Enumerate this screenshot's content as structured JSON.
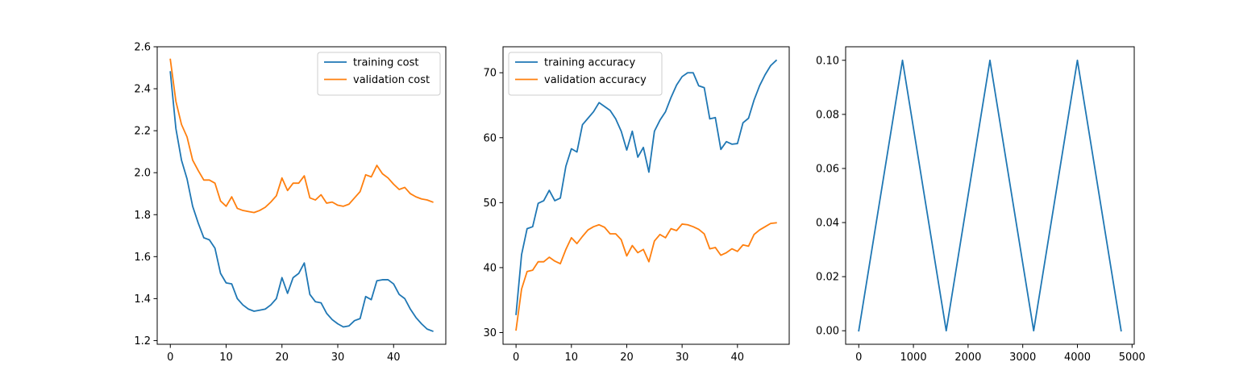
{
  "chart_data": [
    {
      "type": "line",
      "xlim": [
        -2.35,
        49.35
      ],
      "ylim": [
        1.1825,
        2.6
      ],
      "xticks": [
        0,
        10,
        20,
        30,
        40
      ],
      "xtick_labels": [
        "0",
        "10",
        "20",
        "30",
        "40"
      ],
      "yticks": [
        1.2,
        1.4,
        1.6,
        1.8,
        2.0,
        2.2,
        2.4,
        2.6
      ],
      "ytick_labels": [
        "1.2",
        "1.4",
        "1.6",
        "1.8",
        "2.0",
        "2.2",
        "2.4",
        "2.6"
      ],
      "grid": false,
      "legend_position": "top-right",
      "series": [
        {
          "name": "training cost",
          "color": "#1f77b4",
          "x": [
            0,
            1,
            2,
            3,
            4,
            5,
            6,
            7,
            8,
            9,
            10,
            11,
            12,
            13,
            14,
            15,
            16,
            17,
            18,
            19,
            20,
            21,
            22,
            23,
            24,
            25,
            26,
            27,
            28,
            29,
            30,
            31,
            32,
            33,
            34,
            35,
            36,
            37,
            38,
            39,
            40,
            41,
            42,
            43,
            44,
            45,
            46,
            47
          ],
          "y": [
            2.48,
            2.21,
            2.06,
            1.97,
            1.84,
            1.76,
            1.69,
            1.68,
            1.64,
            1.52,
            1.475,
            1.47,
            1.4,
            1.37,
            1.35,
            1.34,
            1.345,
            1.35,
            1.37,
            1.4,
            1.5,
            1.425,
            1.5,
            1.52,
            1.57,
            1.42,
            1.385,
            1.38,
            1.33,
            1.3,
            1.28,
            1.265,
            1.27,
            1.295,
            1.305,
            1.41,
            1.395,
            1.485,
            1.49,
            1.49,
            1.47,
            1.42,
            1.4,
            1.35,
            1.31,
            1.28,
            1.255,
            1.245
          ]
        },
        {
          "name": "validation cost",
          "color": "#ff7f0e",
          "x": [
            0,
            1,
            2,
            3,
            4,
            5,
            6,
            7,
            8,
            9,
            10,
            11,
            12,
            13,
            14,
            15,
            16,
            17,
            18,
            19,
            20,
            21,
            22,
            23,
            24,
            25,
            26,
            27,
            28,
            29,
            30,
            31,
            32,
            33,
            34,
            35,
            36,
            37,
            38,
            39,
            40,
            41,
            42,
            43,
            44,
            45,
            46,
            47
          ],
          "y": [
            2.54,
            2.34,
            2.23,
            2.17,
            2.06,
            2.01,
            1.965,
            1.965,
            1.95,
            1.865,
            1.84,
            1.885,
            1.83,
            1.82,
            1.815,
            1.81,
            1.82,
            1.835,
            1.86,
            1.89,
            1.975,
            1.915,
            1.95,
            1.95,
            1.985,
            1.88,
            1.87,
            1.895,
            1.855,
            1.86,
            1.845,
            1.84,
            1.85,
            1.88,
            1.91,
            1.99,
            1.98,
            2.035,
            1.995,
            1.975,
            1.945,
            1.92,
            1.93,
            1.9,
            1.885,
            1.875,
            1.87,
            1.86
          ]
        }
      ]
    },
    {
      "type": "line",
      "xlim": [
        -2.35,
        49.35
      ],
      "ylim": [
        28.2,
        74.0
      ],
      "xticks": [
        0,
        10,
        20,
        30,
        40
      ],
      "xtick_labels": [
        "0",
        "10",
        "20",
        "30",
        "40"
      ],
      "yticks": [
        30,
        40,
        50,
        60,
        70
      ],
      "ytick_labels": [
        "30",
        "40",
        "50",
        "60",
        "70"
      ],
      "grid": false,
      "legend_position": "top-left",
      "series": [
        {
          "name": "training accuracy",
          "color": "#1f77b4",
          "x": [
            0,
            1,
            2,
            3,
            4,
            5,
            6,
            7,
            8,
            9,
            10,
            11,
            12,
            13,
            14,
            15,
            16,
            17,
            18,
            19,
            20,
            21,
            22,
            23,
            24,
            25,
            26,
            27,
            28,
            29,
            30,
            31,
            32,
            33,
            34,
            35,
            36,
            37,
            38,
            39,
            40,
            41,
            42,
            43,
            44,
            45,
            46,
            47
          ],
          "y": [
            32.8,
            42.0,
            46.0,
            46.3,
            49.9,
            50.3,
            51.9,
            50.3,
            50.7,
            55.6,
            58.3,
            57.8,
            62.0,
            63.0,
            64.0,
            65.4,
            64.8,
            64.2,
            62.9,
            61.0,
            58.1,
            61.0,
            57.0,
            58.5,
            54.7,
            61.0,
            62.7,
            64.0,
            66.2,
            68.1,
            69.4,
            70.0,
            70.0,
            68.0,
            67.7,
            62.9,
            63.1,
            58.2,
            59.4,
            59.0,
            59.1,
            62.3,
            63.0,
            65.8,
            68.0,
            69.7,
            71.1,
            71.9
          ]
        },
        {
          "name": "validation accuracy",
          "color": "#ff7f0e",
          "x": [
            0,
            1,
            2,
            3,
            4,
            5,
            6,
            7,
            8,
            9,
            10,
            11,
            12,
            13,
            14,
            15,
            16,
            17,
            18,
            19,
            20,
            21,
            22,
            23,
            24,
            25,
            26,
            27,
            28,
            29,
            30,
            31,
            32,
            33,
            34,
            35,
            36,
            37,
            38,
            39,
            40,
            41,
            42,
            43,
            44,
            45,
            46,
            47
          ],
          "y": [
            30.4,
            36.7,
            39.4,
            39.6,
            40.9,
            40.9,
            41.6,
            41.0,
            40.6,
            42.8,
            44.6,
            43.7,
            44.8,
            45.8,
            46.3,
            46.6,
            46.2,
            45.2,
            45.2,
            44.3,
            41.8,
            43.4,
            42.3,
            42.8,
            40.9,
            44.1,
            45.1,
            44.6,
            46.0,
            45.7,
            46.7,
            46.6,
            46.3,
            45.9,
            45.2,
            42.9,
            43.1,
            41.9,
            42.3,
            42.9,
            42.5,
            43.5,
            43.3,
            45.1,
            45.8,
            46.3,
            46.8,
            46.9
          ]
        }
      ]
    },
    {
      "type": "line",
      "xlim": [
        -240,
        5040
      ],
      "ylim": [
        -0.005,
        0.105
      ],
      "xticks": [
        0,
        1000,
        2000,
        3000,
        4000,
        5000
      ],
      "xtick_labels": [
        "0",
        "1000",
        "2000",
        "3000",
        "4000",
        "5000"
      ],
      "yticks": [
        0.0,
        0.02,
        0.04,
        0.06,
        0.08,
        0.1
      ],
      "ytick_labels": [
        "0.00",
        "0.02",
        "0.04",
        "0.06",
        "0.08",
        "0.10"
      ],
      "grid": false,
      "series": [
        {
          "color": "#1f77b4",
          "x": [
            0,
            800,
            1600,
            2400,
            3200,
            4000,
            4800
          ],
          "y": [
            0.0,
            0.1,
            0.0,
            0.1,
            0.0,
            0.1,
            0.0
          ]
        }
      ]
    }
  ]
}
